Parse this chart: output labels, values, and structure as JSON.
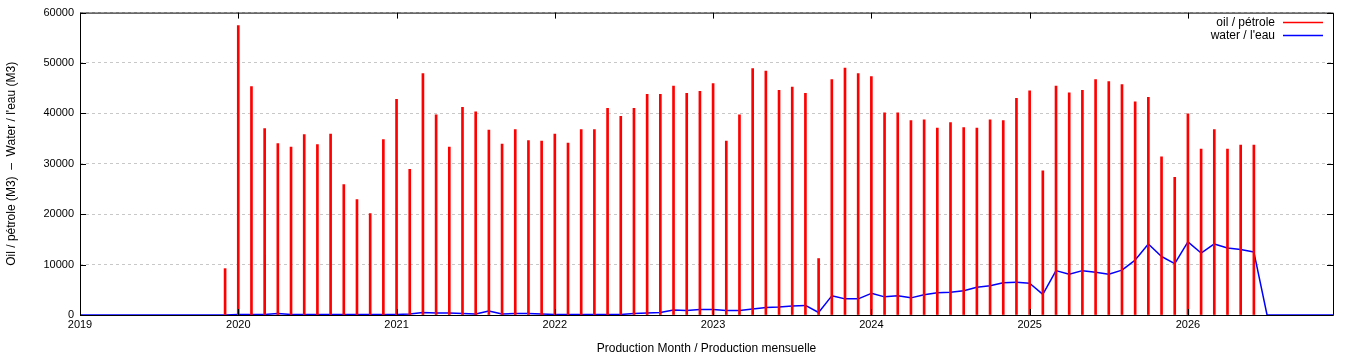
{
  "chart_data": {
    "type": "bar",
    "xlabel": "Production Month / Production mensuelle",
    "ylabel": "Oil / pétrole (M3)  –  Water / l'eau (M3)",
    "xlim": [
      "2019",
      "2026-12"
    ],
    "xticks": [
      "2019",
      "2020",
      "2021",
      "2022",
      "2023",
      "2024",
      "2025",
      "2026"
    ],
    "ylim": [
      0,
      60000
    ],
    "yticks": [
      0,
      10000,
      20000,
      30000,
      40000,
      50000,
      60000
    ],
    "grid": "y",
    "legend": "top right",
    "marker": "none",
    "line_style": "solid",
    "series": [
      {
        "name": "oil / pétrole",
        "color": "#ff0000",
        "x": [
          "2019-12",
          "2020-01",
          "2020-02",
          "2020-03",
          "2020-04",
          "2020-05",
          "2020-06",
          "2020-07",
          "2020-08",
          "2020-09",
          "2020-10",
          "2020-11",
          "2020-12",
          "2021-01",
          "2021-02",
          "2021-03",
          "2021-04",
          "2021-05",
          "2021-06",
          "2021-07",
          "2021-08",
          "2021-09",
          "2021-10",
          "2021-11",
          "2021-12",
          "2022-01",
          "2022-02",
          "2022-03",
          "2022-04",
          "2022-05",
          "2022-06",
          "2022-07",
          "2022-08",
          "2022-09",
          "2022-10",
          "2022-11",
          "2022-12",
          "2023-01",
          "2023-02",
          "2023-03",
          "2023-04",
          "2023-05",
          "2023-06",
          "2023-07",
          "2023-08",
          "2023-09",
          "2023-10",
          "2023-11",
          "2023-12",
          "2024-01",
          "2024-02",
          "2024-03",
          "2024-04",
          "2024-05",
          "2024-06",
          "2024-07",
          "2024-08",
          "2024-09",
          "2024-10",
          "2024-11",
          "2024-12",
          "2025-01",
          "2025-02",
          "2025-03",
          "2025-04",
          "2025-05",
          "2025-06",
          "2025-07",
          "2025-08",
          "2025-09",
          "2025-10",
          "2025-11",
          "2025-12",
          "2026-01",
          "2026-02",
          "2026-03",
          "2026-04",
          "2026-05",
          "2026-06"
        ],
        "values": [
          9200,
          57400,
          45300,
          37000,
          34000,
          33300,
          35800,
          33800,
          35900,
          25900,
          22900,
          20100,
          34800,
          42800,
          28900,
          47900,
          39700,
          33300,
          41200,
          40300,
          36700,
          33900,
          36800,
          34600,
          34500,
          35900,
          34100,
          36800,
          36800,
          41000,
          39400,
          41000,
          43800,
          43800,
          45400,
          44000,
          44400,
          45900,
          34500,
          39700,
          48900,
          48400,
          44600,
          45200,
          44000,
          11200,
          46700,
          49000,
          47900,
          47300,
          40100,
          40100,
          38600,
          38700,
          37100,
          38200,
          37200,
          37100,
          38700,
          38600,
          43000,
          44500,
          28600,
          45400,
          44100,
          44600,
          46700,
          46300,
          45700,
          42300,
          43200,
          31400,
          27300,
          39900,
          32900,
          36800,
          32900,
          33700,
          33700
        ]
      },
      {
        "name": "water / l'eau",
        "type": "line",
        "color": "#0000ff",
        "x": [
          "2019-01",
          "2019-02",
          "2019-03",
          "2019-04",
          "2019-05",
          "2019-06",
          "2019-07",
          "2019-08",
          "2019-09",
          "2019-10",
          "2019-11",
          "2019-12",
          "2020-01",
          "2020-02",
          "2020-03",
          "2020-04",
          "2020-05",
          "2020-06",
          "2020-07",
          "2020-08",
          "2020-09",
          "2020-10",
          "2020-11",
          "2020-12",
          "2021-01",
          "2021-02",
          "2021-03",
          "2021-04",
          "2021-05",
          "2021-06",
          "2021-07",
          "2021-08",
          "2021-09",
          "2021-10",
          "2021-11",
          "2021-12",
          "2022-01",
          "2022-02",
          "2022-03",
          "2022-04",
          "2022-05",
          "2022-06",
          "2022-07",
          "2022-08",
          "2022-09",
          "2022-10",
          "2022-11",
          "2022-12",
          "2023-01",
          "2023-02",
          "2023-03",
          "2023-04",
          "2023-05",
          "2023-06",
          "2023-07",
          "2023-08",
          "2023-09",
          "2023-10",
          "2023-11",
          "2023-12",
          "2024-01",
          "2024-02",
          "2024-03",
          "2024-04",
          "2024-05",
          "2024-06",
          "2024-07",
          "2024-08",
          "2024-09",
          "2024-10",
          "2024-11",
          "2024-12",
          "2025-01",
          "2025-02",
          "2025-03",
          "2025-04",
          "2025-05",
          "2025-06",
          "2025-07",
          "2025-08",
          "2025-09",
          "2025-10",
          "2025-11",
          "2025-12",
          "2026-01",
          "2026-02",
          "2026-03",
          "2026-04",
          "2026-05",
          "2026-06",
          "2026-07",
          "2026-08",
          "2026-09",
          "2026-10",
          "2026-11",
          "2026-12"
        ],
        "values": [
          0,
          0,
          0,
          0,
          0,
          0,
          0,
          0,
          0,
          0,
          0,
          0,
          100,
          100,
          100,
          300,
          100,
          100,
          100,
          100,
          100,
          100,
          100,
          100,
          100,
          200,
          500,
          400,
          400,
          300,
          200,
          800,
          200,
          300,
          300,
          200,
          100,
          100,
          100,
          100,
          100,
          100,
          300,
          400,
          500,
          1000,
          900,
          1100,
          1100,
          900,
          900,
          1200,
          1500,
          1600,
          1800,
          1900,
          500,
          3800,
          3200,
          3200,
          4300,
          3600,
          3800,
          3400,
          4000,
          4400,
          4500,
          4800,
          5500,
          5800,
          6400,
          6500,
          6300,
          4100,
          8800,
          8100,
          8800,
          8500,
          8100,
          8900,
          10900,
          14100,
          11600,
          10200,
          14500,
          12300,
          14100,
          13300,
          13000,
          12500,
          0,
          0,
          0,
          0,
          0,
          0
        ]
      }
    ]
  }
}
